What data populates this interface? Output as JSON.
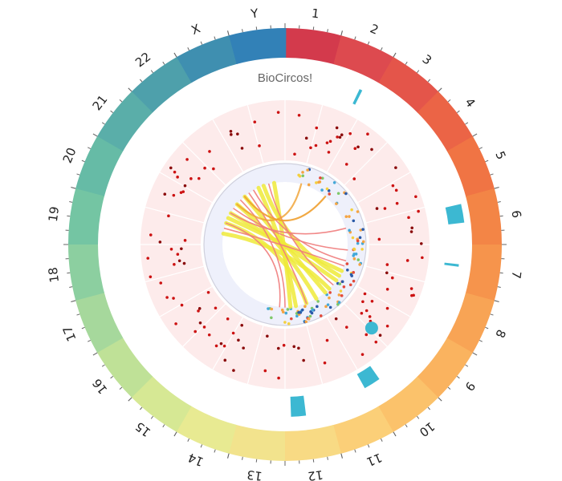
{
  "title": "BioCircos!",
  "chromosomes": [
    {
      "label": "1",
      "color": "#d33a4c"
    },
    {
      "label": "2",
      "color": "#dd4a4f"
    },
    {
      "label": "3",
      "color": "#e4554a"
    },
    {
      "label": "4",
      "color": "#eb6446"
    },
    {
      "label": "5",
      "color": "#f07444"
    },
    {
      "label": "6",
      "color": "#f38546"
    },
    {
      "label": "7",
      "color": "#f6944c"
    },
    {
      "label": "8",
      "color": "#f8a455"
    },
    {
      "label": "9",
      "color": "#fab35f"
    },
    {
      "label": "10",
      "color": "#fbc26b"
    },
    {
      "label": "11",
      "color": "#fbcf78"
    },
    {
      "label": "12",
      "color": "#f8da84"
    },
    {
      "label": "13",
      "color": "#f2e38d"
    },
    {
      "label": "14",
      "color": "#e8ea92"
    },
    {
      "label": "15",
      "color": "#d6e894"
    },
    {
      "label": "16",
      "color": "#bfe197"
    },
    {
      "label": "17",
      "color": "#a6d89c"
    },
    {
      "label": "18",
      "color": "#8ccfa0"
    },
    {
      "label": "19",
      "color": "#74c5a3"
    },
    {
      "label": "20",
      "color": "#66bba6"
    },
    {
      "label": "21",
      "color": "#5aaea9"
    },
    {
      "label": "22",
      "color": "#4ea0ab"
    },
    {
      "label": "X",
      "color": "#3f8fb0"
    },
    {
      "label": "Y",
      "color": "#3281b7"
    }
  ],
  "colors": {
    "snp_band": "#fdebeb",
    "snp_point": "#cc1111",
    "inner_band": "#eef0fb",
    "highlight": "#3cb8d2",
    "arc_yellow": "#eeea3a",
    "arc_red": "#f07c7c",
    "arc_orange": "#f0a030"
  }
}
